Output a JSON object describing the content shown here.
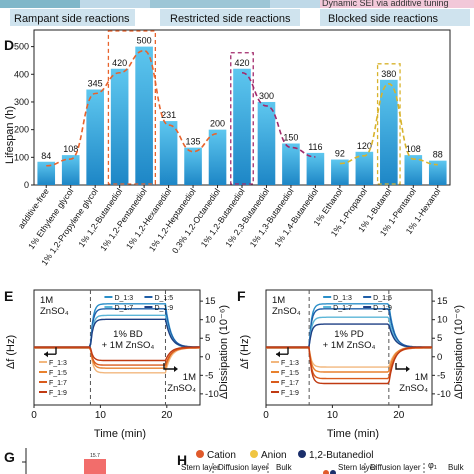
{
  "banner": {
    "left_label": "Rampant side reactions",
    "mid_label": "Restricted side reactions",
    "right_label": "Blocked side reactions",
    "top_right_label": "Dynamic SEI via additive tuning"
  },
  "panel_letters": {
    "d": "D",
    "e": "E",
    "f": "F",
    "g": "G",
    "h": "H"
  },
  "chart_data": [
    {
      "panel": "D",
      "type": "bar",
      "ylabel": "Lifespan (h)",
      "ylim": [
        0,
        560
      ],
      "yticks": [
        0,
        100,
        200,
        300,
        400,
        500
      ],
      "categories": [
        "additive-free",
        "1% Ethylene glycol",
        "1% 1,2-Propylene glycol",
        "1% 1,2-Butanediol",
        "1% 1,2-Pentanediol",
        "1% 1,2-Hexanediol",
        "1% 1,2-Heptanediol",
        "0.3% 1,2-Octanediol",
        "1% 1,2-Butanediol",
        "1% 2,3-Butanediol",
        "1% 1,3-Butanediol",
        "1% 1,4-Butanediol",
        "1% Ethanol",
        "1% 1-Propanol",
        "1% 1-Butanol",
        "1% 1-Pentanol",
        "1% 1-Hexanol"
      ],
      "values": [
        84,
        108,
        345,
        420,
        500,
        231,
        135,
        200,
        420,
        300,
        150,
        116,
        92,
        120,
        380,
        108,
        88
      ],
      "groups": [
        {
          "color": "#e8632c",
          "dash": true,
          "members": [
            0,
            7
          ],
          "box": [
            3,
            4
          ]
        },
        {
          "color": "#a12a6b",
          "dash": true,
          "members": [
            8,
            11
          ],
          "box": [
            8,
            8
          ]
        },
        {
          "color": "#d8b32c",
          "dash": true,
          "members": [
            12,
            16
          ],
          "box": [
            14,
            14
          ]
        }
      ],
      "bar_color_top": "#5ec7ef",
      "bar_color_bottom": "#1d86c6"
    },
    {
      "panel": "E",
      "type": "line",
      "xlabel": "Time (min)",
      "ylabel_left": "Δf (Hz)",
      "ylabel_right": "ΔDissipation (10⁻⁶)",
      "xlim": [
        0,
        25
      ],
      "xticks": [
        0,
        10,
        20
      ],
      "ylim_left": [
        -3,
        3
      ],
      "yticks_right": [
        15,
        10,
        5,
        0,
        -5,
        -10
      ],
      "annotation_left": [
        "1M",
        "ZnSO₄"
      ],
      "annotation_center": [
        "1% BD",
        "+ 1M ZnSO₄"
      ],
      "annotation_right": [
        "1M",
        "ZnSO₄"
      ],
      "vlines": [
        8.5,
        19.8
      ],
      "series": [
        {
          "name": "D_1:3",
          "color": "#2a8fc9",
          "plateau": 2.3
        },
        {
          "name": "D_1:5",
          "color": "#1f5fa8",
          "plateau": 2.0
        },
        {
          "name": "D_1:7",
          "color": "#5bb6d8",
          "plateau": 1.7
        },
        {
          "name": "D_1:9",
          "color": "#1d3f84",
          "plateau": 1.45
        },
        {
          "name": "F_1:3",
          "color": "#f2b77e",
          "plateau": -1.3
        },
        {
          "name": "F_1:5",
          "color": "#e8812e",
          "plateau": -1.1
        },
        {
          "name": "F_1:7",
          "color": "#d95b1c",
          "plateau": -0.9
        },
        {
          "name": "F_1:9",
          "color": "#c03a12",
          "plateau": -0.7
        }
      ]
    },
    {
      "panel": "F",
      "type": "line",
      "xlabel": "Time (min)",
      "ylabel_left": "Δf (Hz)",
      "ylabel_right": "ΔDissipation (10⁻⁶)",
      "xlim": [
        0,
        25
      ],
      "xticks": [
        0,
        10,
        20
      ],
      "ylim_left": [
        -3,
        3
      ],
      "yticks_right": [
        15,
        10,
        5,
        0,
        -5,
        -10
      ],
      "annotation_left": [
        "1M",
        "ZnSO₄"
      ],
      "annotation_center": [
        "1% PD",
        "+ 1M ZnSO₄"
      ],
      "annotation_right": [
        "1M",
        "ZnSO₄"
      ],
      "vlines": [
        6.5,
        18.5
      ],
      "series": [
        {
          "name": "D_1:3",
          "color": "#2a8fc9",
          "plateau": 2.3
        },
        {
          "name": "D_1:5",
          "color": "#1f5fa8",
          "plateau": 2.0
        },
        {
          "name": "D_1:7",
          "color": "#5bb6d8",
          "plateau": 1.6
        },
        {
          "name": "D_1:9",
          "color": "#1d3f84",
          "plateau": 1.2
        },
        {
          "name": "F_1:3",
          "color": "#f2b77e",
          "plateau": -1.0
        },
        {
          "name": "F_1:5",
          "color": "#e8812e",
          "plateau": -1.3
        },
        {
          "name": "F_1:7",
          "color": "#d95b1c",
          "plateau": -1.6
        },
        {
          "name": "F_1:9",
          "color": "#c03a12",
          "plateau": -1.9
        }
      ]
    }
  ],
  "panel_g": {
    "tick_label": "15.7"
  },
  "panel_h": {
    "legend_cation": "Cation",
    "legend_anion": "Anion",
    "legend_butanediol": "1,2-Butanediol",
    "left_stern": "Stern layer",
    "left_diffusion": "Diffusion layer",
    "left_bulk": "Bulk",
    "right_stern": "Stern layer",
    "right_diffusion": "Diffusion layer",
    "right_phi": "φ₁",
    "right_bulk": "Bulk",
    "cation_color": "#e05a2b",
    "anion_color": "#f0c541",
    "butanediol_color": "#1b2f6b"
  }
}
